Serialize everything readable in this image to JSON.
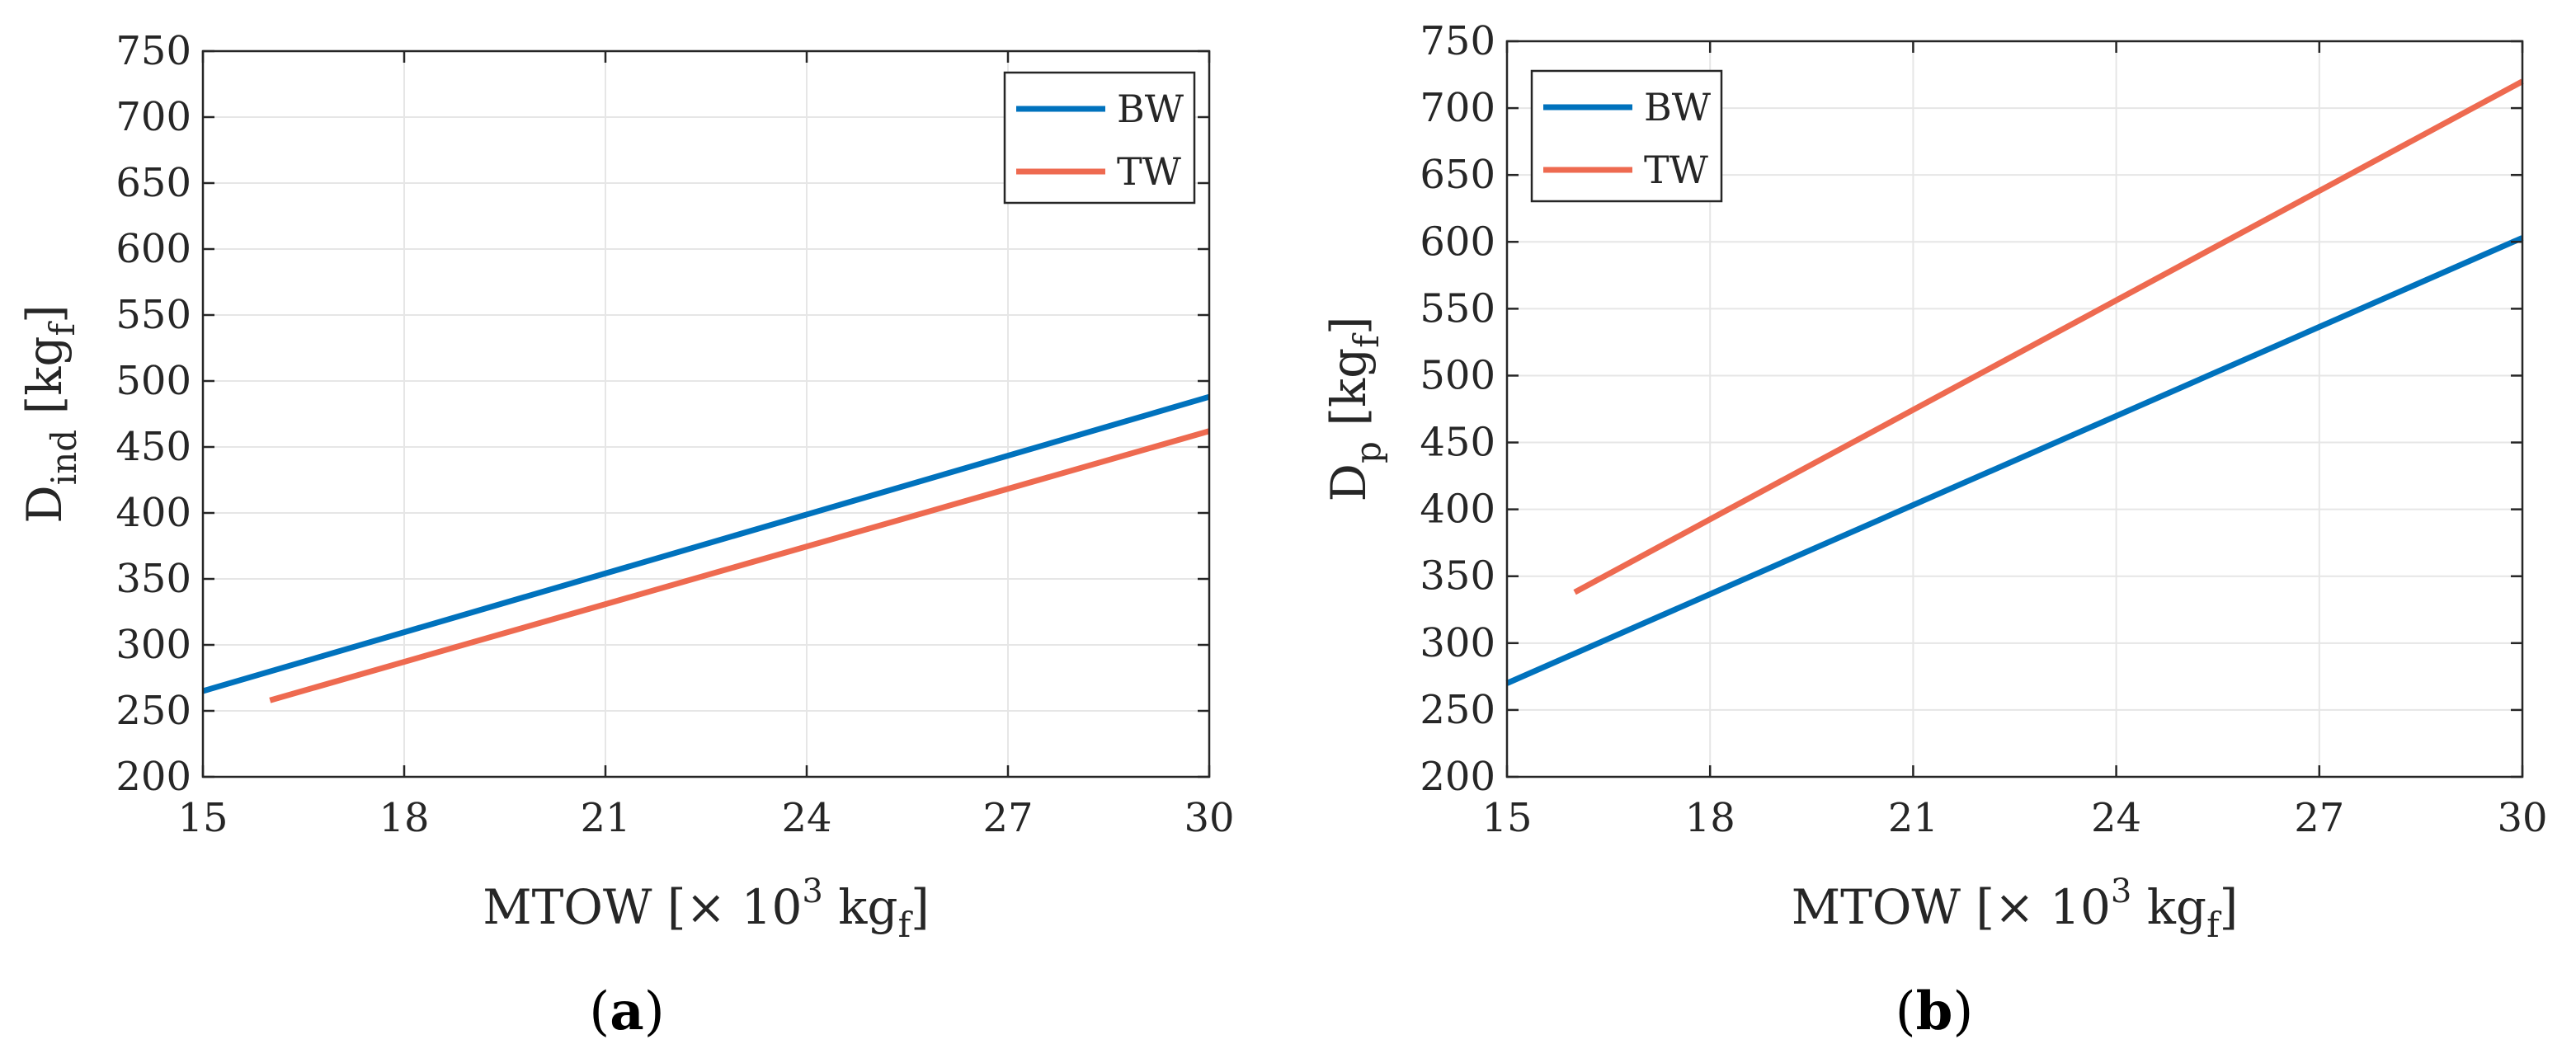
{
  "colors": {
    "BW": "#0072BD",
    "TW": "#EE6A50"
  },
  "chart_data": [
    {
      "type": "line",
      "panel_label": "a",
      "xlabel": "MTOW [× 10",
      "xlabel_sup": "3",
      "xlabel_unit": " kg",
      "xlabel_unit_sub": "f",
      "xlabel_close": "]",
      "ylabel_main": "D",
      "ylabel_sub": "ind",
      "ylabel_unit": " [kg",
      "ylabel_unit_sub": "f",
      "ylabel_close": "]",
      "xlim": [
        15,
        30
      ],
      "ylim": [
        200,
        750
      ],
      "xticks": [
        15,
        18,
        21,
        24,
        27,
        30
      ],
      "yticks": [
        200,
        250,
        300,
        350,
        400,
        450,
        500,
        550,
        600,
        650,
        700,
        750
      ],
      "grid": true,
      "legend_position": "top-right",
      "series": [
        {
          "name": "BW",
          "x": [
            15,
            30
          ],
          "y": [
            265,
            488
          ]
        },
        {
          "name": "TW",
          "x": [
            16,
            30
          ],
          "y": [
            258,
            462
          ]
        }
      ]
    },
    {
      "type": "line",
      "panel_label": "b",
      "xlabel": "MTOW [× 10",
      "xlabel_sup": "3",
      "xlabel_unit": " kg",
      "xlabel_unit_sub": "f",
      "xlabel_close": "]",
      "ylabel_main": "D",
      "ylabel_sub": "p",
      "ylabel_unit": " [kg",
      "ylabel_unit_sub": "f",
      "ylabel_close": "]",
      "xlim": [
        15,
        30
      ],
      "ylim": [
        200,
        750
      ],
      "xticks": [
        15,
        18,
        21,
        24,
        27,
        30
      ],
      "yticks": [
        200,
        250,
        300,
        350,
        400,
        450,
        500,
        550,
        600,
        650,
        700,
        750
      ],
      "grid": true,
      "legend_position": "top-left",
      "series": [
        {
          "name": "BW",
          "x": [
            15,
            30
          ],
          "y": [
            270,
            603
          ]
        },
        {
          "name": "TW",
          "x": [
            16,
            30
          ],
          "y": [
            338,
            720
          ]
        }
      ]
    }
  ]
}
